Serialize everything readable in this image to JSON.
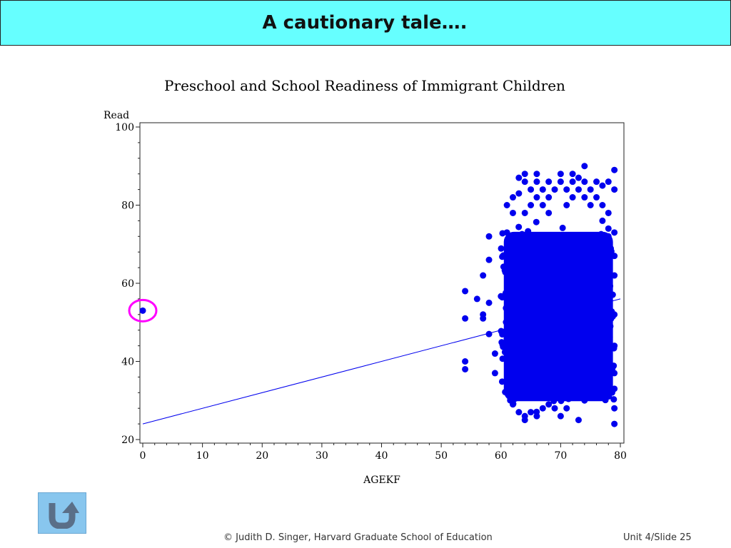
{
  "slide": {
    "title": "A cautionary tale….",
    "credit": "© Judith D. Singer, Harvard Graduate School of Education",
    "slide_number": "Unit 4/Slide 25"
  },
  "nav": {
    "back_icon": "u-turn-arrow-icon"
  },
  "chart_data": {
    "type": "scatter",
    "title": "Preschool and School Readiness of Immigrant Children",
    "xlabel": "AGEKF",
    "ylabel": "Read",
    "xlim": [
      0,
      80
    ],
    "ylim": [
      20,
      100
    ],
    "xticks": [
      0,
      10,
      20,
      30,
      40,
      50,
      60,
      70,
      80
    ],
    "yticks": [
      20,
      40,
      60,
      80,
      100
    ],
    "grid": false,
    "point_color": "#0000ee",
    "highlight_color": "#ff00ff",
    "fit_line": {
      "x": [
        0,
        80
      ],
      "y": [
        24,
        56
      ]
    },
    "outlier": {
      "x": 0,
      "y": 53
    },
    "dense_cluster": {
      "x_range": [
        60,
        79
      ],
      "y_range": [
        28,
        75
      ]
    },
    "points": [
      [
        54,
        58
      ],
      [
        54,
        51
      ],
      [
        54,
        40
      ],
      [
        54,
        38
      ],
      [
        56,
        56
      ],
      [
        57,
        62
      ],
      [
        57,
        52
      ],
      [
        57,
        51
      ],
      [
        58,
        72
      ],
      [
        58,
        66
      ],
      [
        58,
        55
      ],
      [
        58,
        47
      ],
      [
        59,
        42
      ],
      [
        59,
        37
      ],
      [
        61,
        80
      ],
      [
        61,
        73
      ],
      [
        62,
        78
      ],
      [
        62,
        82
      ],
      [
        63,
        87
      ],
      [
        63,
        83
      ],
      [
        64,
        88
      ],
      [
        64,
        86
      ],
      [
        64,
        78
      ],
      [
        65,
        84
      ],
      [
        65,
        80
      ],
      [
        66,
        88
      ],
      [
        66,
        86
      ],
      [
        66,
        82
      ],
      [
        67,
        84
      ],
      [
        67,
        80
      ],
      [
        68,
        86
      ],
      [
        68,
        82
      ],
      [
        68,
        78
      ],
      [
        69,
        84
      ],
      [
        70,
        88
      ],
      [
        70,
        86
      ],
      [
        71,
        84
      ],
      [
        71,
        80
      ],
      [
        72,
        88
      ],
      [
        72,
        86
      ],
      [
        72,
        82
      ],
      [
        73,
        87
      ],
      [
        73,
        84
      ],
      [
        74,
        90
      ],
      [
        74,
        86
      ],
      [
        74,
        82
      ],
      [
        75,
        84
      ],
      [
        75,
        80
      ],
      [
        76,
        86
      ],
      [
        76,
        82
      ],
      [
        77,
        85
      ],
      [
        77,
        80
      ],
      [
        77,
        76
      ],
      [
        78,
        86
      ],
      [
        78,
        78
      ],
      [
        78,
        74
      ],
      [
        78,
        72
      ],
      [
        79,
        89
      ],
      [
        79,
        84
      ],
      [
        79,
        73
      ],
      [
        79,
        67
      ],
      [
        79,
        62
      ],
      [
        79,
        52
      ],
      [
        79,
        44
      ],
      [
        79,
        37
      ],
      [
        79,
        33
      ],
      [
        79,
        28
      ],
      [
        79,
        24
      ],
      [
        62,
        29
      ],
      [
        63,
        27
      ],
      [
        64,
        26
      ],
      [
        64,
        25
      ],
      [
        65,
        27
      ],
      [
        66,
        26
      ],
      [
        67,
        28
      ],
      [
        68,
        29
      ],
      [
        69,
        28
      ],
      [
        70,
        26
      ],
      [
        71,
        28
      ],
      [
        73,
        25
      ],
      [
        74,
        30
      ],
      [
        75,
        32
      ],
      [
        76,
        34
      ],
      [
        77,
        33
      ],
      [
        78,
        35
      ]
    ]
  }
}
